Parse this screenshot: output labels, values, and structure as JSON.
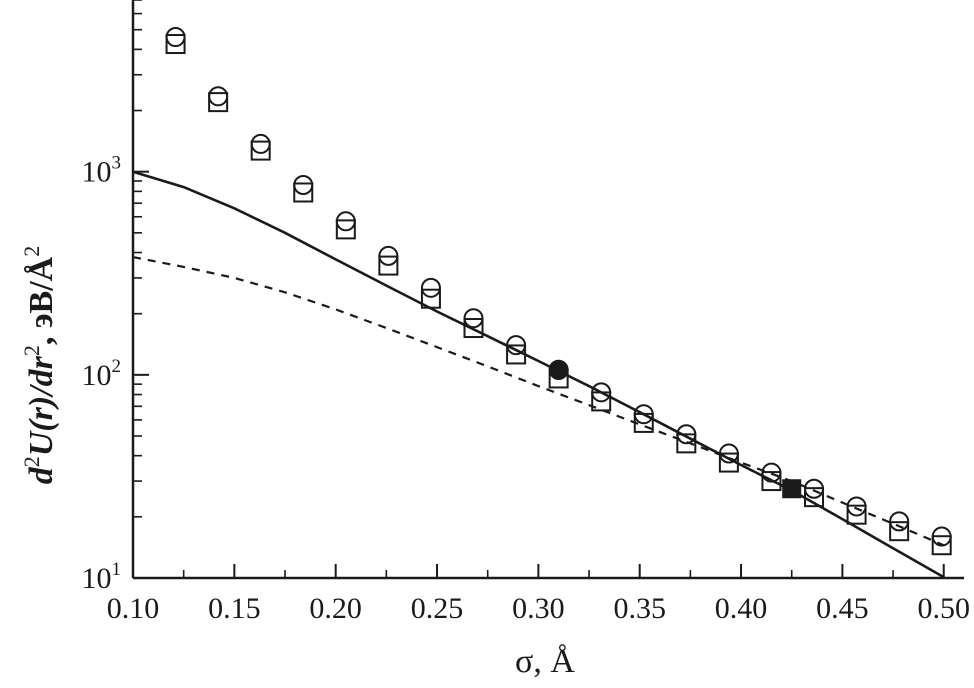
{
  "chart_data": {
    "type": "scatter",
    "title": "",
    "xlabel": "σ, Å",
    "ylabel": {
      "p1": "d",
      "p1sup": "2",
      "p2": "U(r)/dr",
      "p2sup": "2",
      "p3": ", эВ/Å",
      "p3sup": "2"
    },
    "x_ticks": [
      "0.10",
      "0.15",
      "0.20",
      "0.25",
      "0.30",
      "0.35",
      "0.40",
      "0.45",
      "0.50"
    ],
    "y_ticks": [
      {
        "base": "10",
        "exp": "1",
        "value": 10
      },
      {
        "base": "10",
        "exp": "2",
        "value": 100
      },
      {
        "base": "10",
        "exp": "3",
        "value": 1000
      }
    ],
    "xlim": [
      0.1,
      0.51
    ],
    "ylim": [
      10,
      7000
    ],
    "y_scale": "log",
    "grid": false,
    "legend": "none",
    "series": [
      {
        "marker": "open-circle",
        "x": [
          0.121,
          0.142,
          0.163,
          0.184,
          0.205,
          0.226,
          0.247,
          0.268,
          0.289,
          0.31,
          0.331,
          0.352,
          0.373,
          0.394,
          0.415,
          0.436,
          0.457,
          0.478,
          0.499
        ],
        "y": [
          4600,
          2350,
          1370,
          860,
          570,
          385,
          268,
          190,
          140,
          106,
          82,
          64,
          51,
          41,
          33,
          27.5,
          22.5,
          19,
          16
        ]
      },
      {
        "marker": "open-square",
        "x": [
          0.121,
          0.142,
          0.163,
          0.184,
          0.205,
          0.226,
          0.247,
          0.268,
          0.289,
          0.31,
          0.331,
          0.352,
          0.373,
          0.394,
          0.415,
          0.436,
          0.457,
          0.478,
          0.499
        ],
        "y": [
          4250,
          2200,
          1270,
          790,
          520,
          345,
          237,
          170,
          126,
          96,
          74,
          58,
          46,
          37,
          30,
          25,
          20.5,
          17,
          14.5
        ]
      },
      {
        "marker": "filled-circle",
        "x": [
          0.31
        ],
        "y": [
          105
        ]
      },
      {
        "marker": "filled-square",
        "x": [
          0.425
        ],
        "y": [
          27.5
        ]
      },
      {
        "line": "solid",
        "x": [
          0.1,
          0.125,
          0.15,
          0.175,
          0.2,
          0.225,
          0.25,
          0.275,
          0.3,
          0.325,
          0.35,
          0.375,
          0.4,
          0.425,
          0.45,
          0.475,
          0.5
        ],
        "y": [
          1000,
          840,
          660,
          500,
          370,
          275,
          205,
          155,
          117,
          88,
          65.5,
          48.5,
          36,
          27,
          19.5,
          14,
          10.1
        ]
      },
      {
        "line": "dashed",
        "x": [
          0.1,
          0.125,
          0.15,
          0.175,
          0.2,
          0.225,
          0.25,
          0.275,
          0.3,
          0.325,
          0.35,
          0.375,
          0.4,
          0.425,
          0.45,
          0.475,
          0.5
        ],
        "y": [
          380,
          340,
          300,
          255,
          210,
          170,
          137,
          110,
          88,
          71,
          57,
          46,
          37,
          30,
          23.5,
          18.5,
          14.5
        ]
      }
    ]
  }
}
